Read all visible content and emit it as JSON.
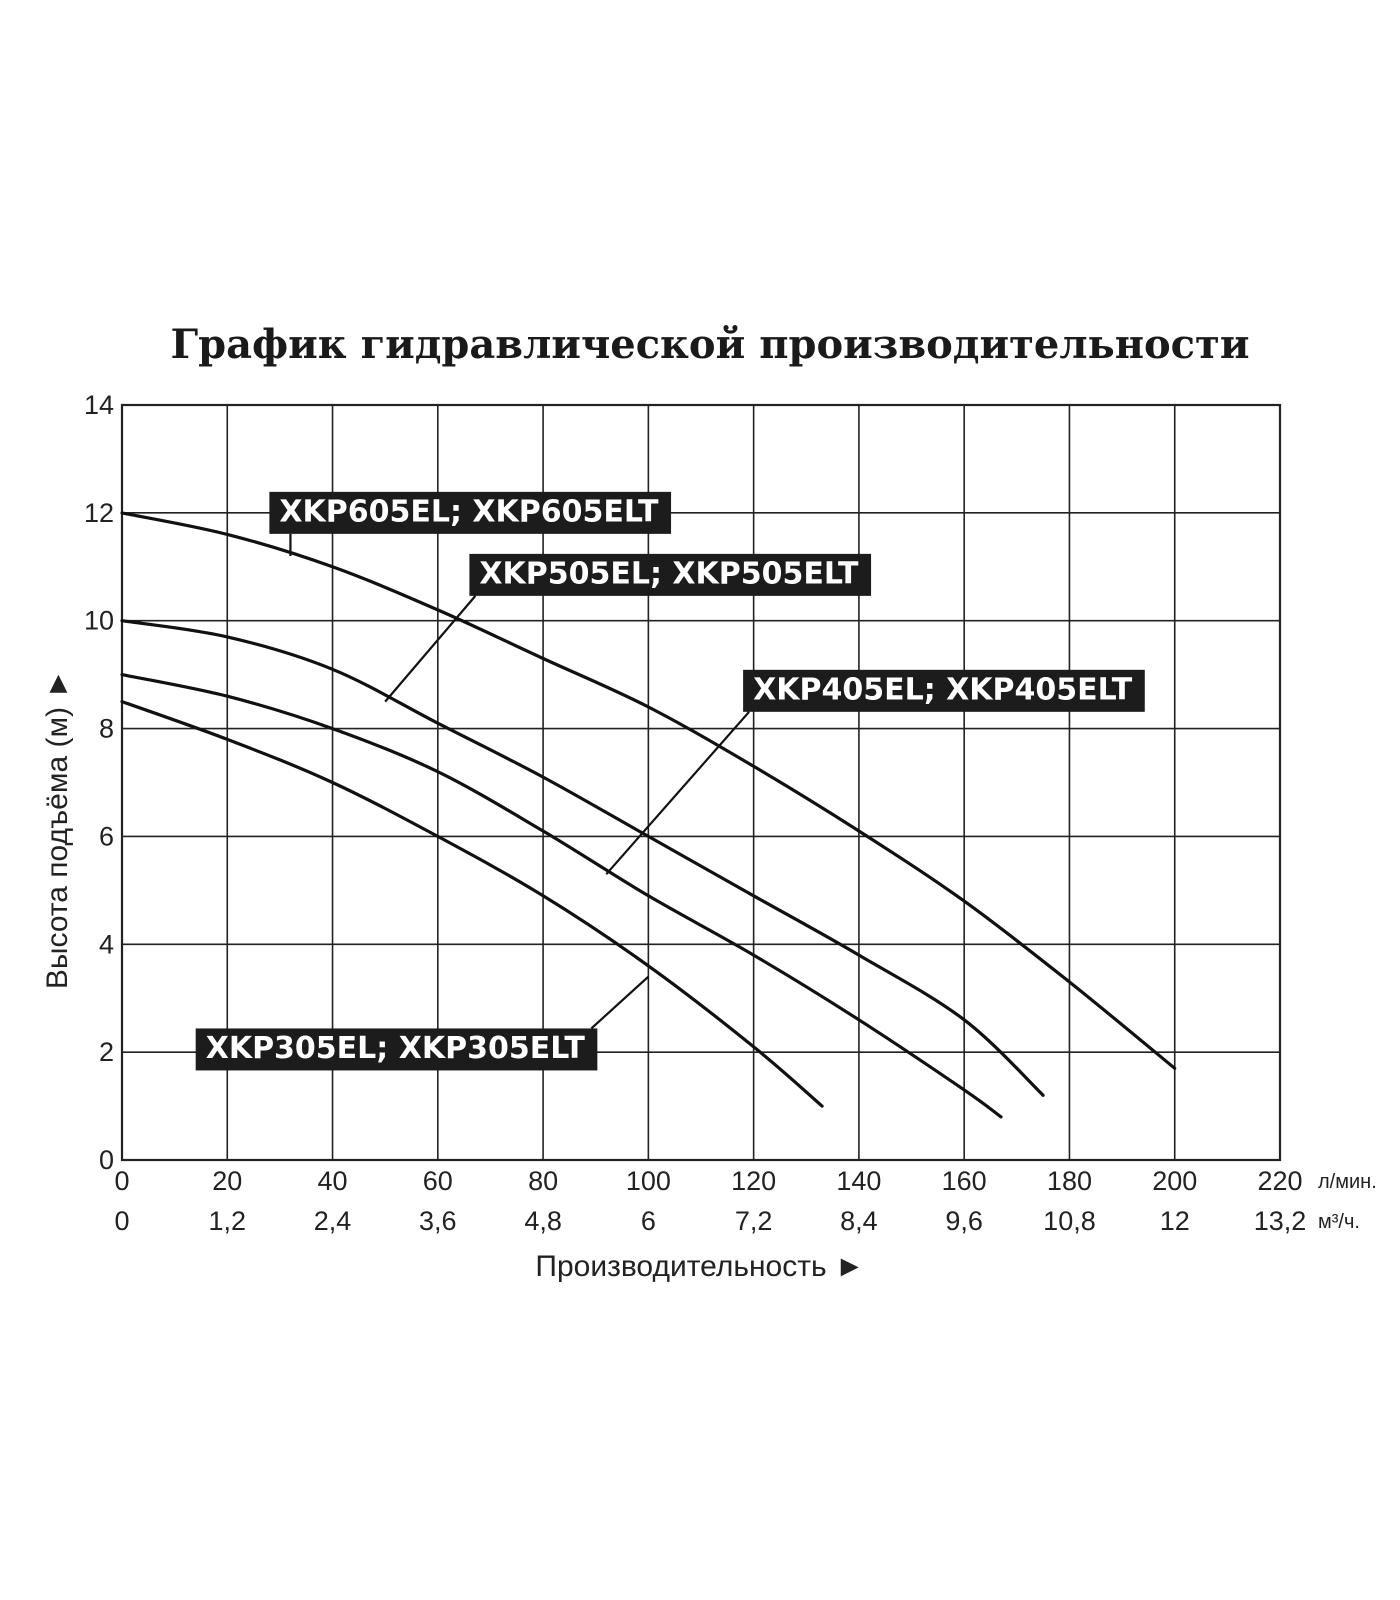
{
  "chart_data": {
    "type": "line",
    "title": "График гидравлической производительности",
    "xlabel": "Производительность ►",
    "ylabel": "Высота подъёма (м) ►",
    "x_unit": "л/мин.",
    "x2_unit": "м³/ч.",
    "xlim": [
      0,
      220
    ],
    "ylim": [
      0,
      14
    ],
    "x_ticks": [
      0,
      20,
      40,
      60,
      80,
      100,
      120,
      140,
      160,
      180,
      200,
      220
    ],
    "x_tick_labels": [
      "0",
      "20",
      "40",
      "60",
      "80",
      "100",
      "120",
      "140",
      "160",
      "180",
      "200",
      "220"
    ],
    "x2_tick_labels": [
      "0",
      "1,2",
      "2,4",
      "3,6",
      "4,8",
      "6",
      "7,2",
      "8,4",
      "9,6",
      "10,8",
      "12",
      "13,2"
    ],
    "y_ticks": [
      0,
      2,
      4,
      6,
      8,
      10,
      12,
      14
    ],
    "y_tick_labels": [
      "0",
      "2",
      "4",
      "6",
      "8",
      "10",
      "12",
      "14"
    ],
    "grid": true,
    "series": [
      {
        "name": "XKP605EL; XKP605ELT",
        "points": [
          [
            0,
            12
          ],
          [
            20,
            11.6
          ],
          [
            40,
            11.0
          ],
          [
            60,
            10.2
          ],
          [
            80,
            9.3
          ],
          [
            100,
            8.4
          ],
          [
            120,
            7.3
          ],
          [
            140,
            6.1
          ],
          [
            160,
            4.8
          ],
          [
            180,
            3.3
          ],
          [
            200,
            1.7
          ]
        ],
        "label_at": [
          28,
          12.0
        ],
        "pointer_at": [
          32,
          11.2
        ]
      },
      {
        "name": "XKP505EL; XKP505ELT",
        "points": [
          [
            0,
            10
          ],
          [
            20,
            9.7
          ],
          [
            40,
            9.1
          ],
          [
            60,
            8.1
          ],
          [
            80,
            7.1
          ],
          [
            100,
            6.0
          ],
          [
            120,
            4.9
          ],
          [
            140,
            3.8
          ],
          [
            160,
            2.6
          ],
          [
            175,
            1.2
          ]
        ],
        "label_at": [
          66,
          10.85
        ],
        "pointer_at": [
          50,
          8.5
        ]
      },
      {
        "name": "XKP405EL; XKP405ELT",
        "points": [
          [
            0,
            9
          ],
          [
            20,
            8.6
          ],
          [
            40,
            8.0
          ],
          [
            60,
            7.2
          ],
          [
            80,
            6.1
          ],
          [
            100,
            4.9
          ],
          [
            120,
            3.8
          ],
          [
            140,
            2.6
          ],
          [
            160,
            1.3
          ],
          [
            167,
            0.8
          ]
        ],
        "label_at": [
          118,
          8.7
        ],
        "pointer_at": [
          92,
          5.3
        ]
      },
      {
        "name": "XKP305EL; XKP305ELT",
        "points": [
          [
            0,
            8.5
          ],
          [
            20,
            7.8
          ],
          [
            40,
            7.0
          ],
          [
            60,
            6.0
          ],
          [
            80,
            4.9
          ],
          [
            100,
            3.6
          ],
          [
            120,
            2.1
          ],
          [
            133,
            1.0
          ]
        ],
        "label_at": [
          14,
          2.05
        ],
        "pointer_at": [
          100,
          3.4
        ]
      }
    ]
  }
}
